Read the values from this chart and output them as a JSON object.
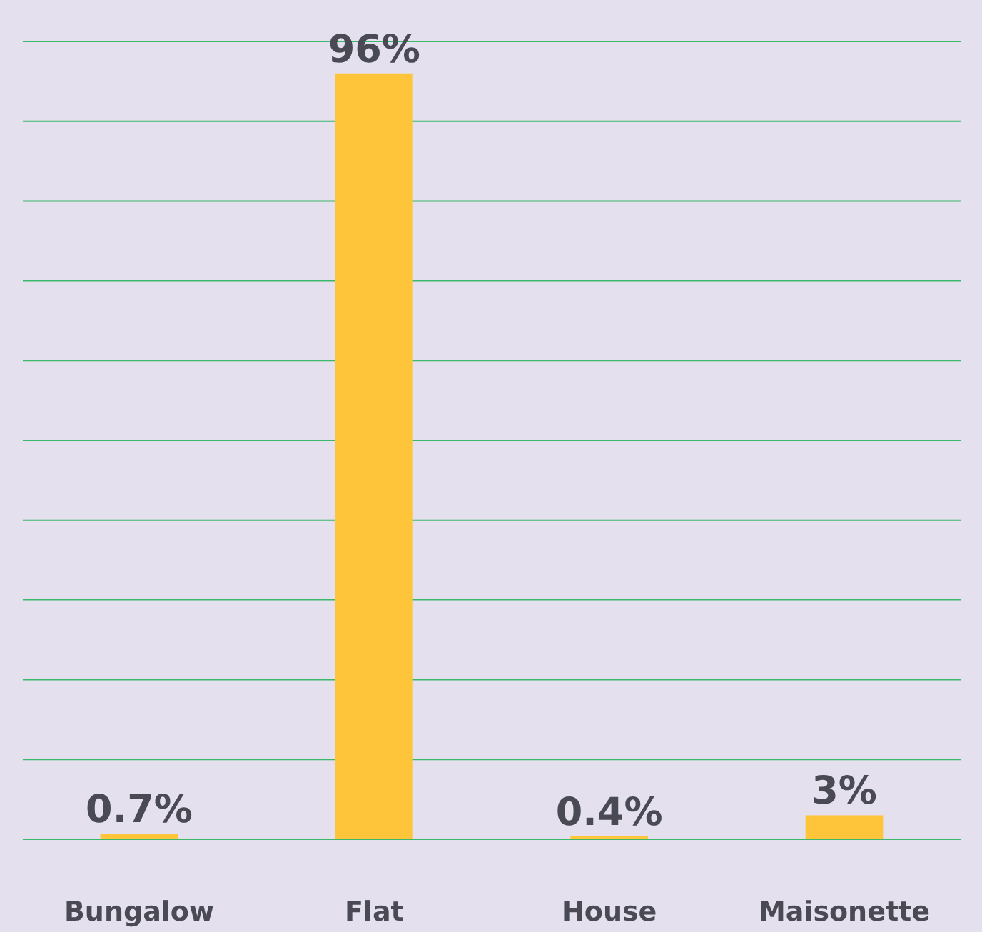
{
  "chart_data": {
    "type": "bar",
    "categories": [
      "Bungalow",
      "Flat",
      "House",
      "Maisonette"
    ],
    "values": [
      0.7,
      96,
      0.4,
      3
    ],
    "color": "#ffc53a",
    "ylim": [
      0,
      100
    ],
    "yticks": [
      {
        "value": 0,
        "label": null
      },
      {
        "value": 10,
        "label": null
      },
      {
        "value": 20,
        "label": null
      },
      {
        "value": 30,
        "label": null
      },
      {
        "value": 40,
        "label": null
      },
      {
        "value": 50,
        "label": null
      },
      {
        "value": 60,
        "label": null
      },
      {
        "value": 70,
        "label": null
      },
      {
        "value": 80,
        "label": null
      },
      {
        "value": 90,
        "label": null
      },
      {
        "value": 100,
        "label": null
      }
    ],
    "value_labels": [
      "0.7%",
      "96%",
      "0.4%",
      "3%"
    ],
    "grid": "y",
    "tick_labels": "x"
  }
}
